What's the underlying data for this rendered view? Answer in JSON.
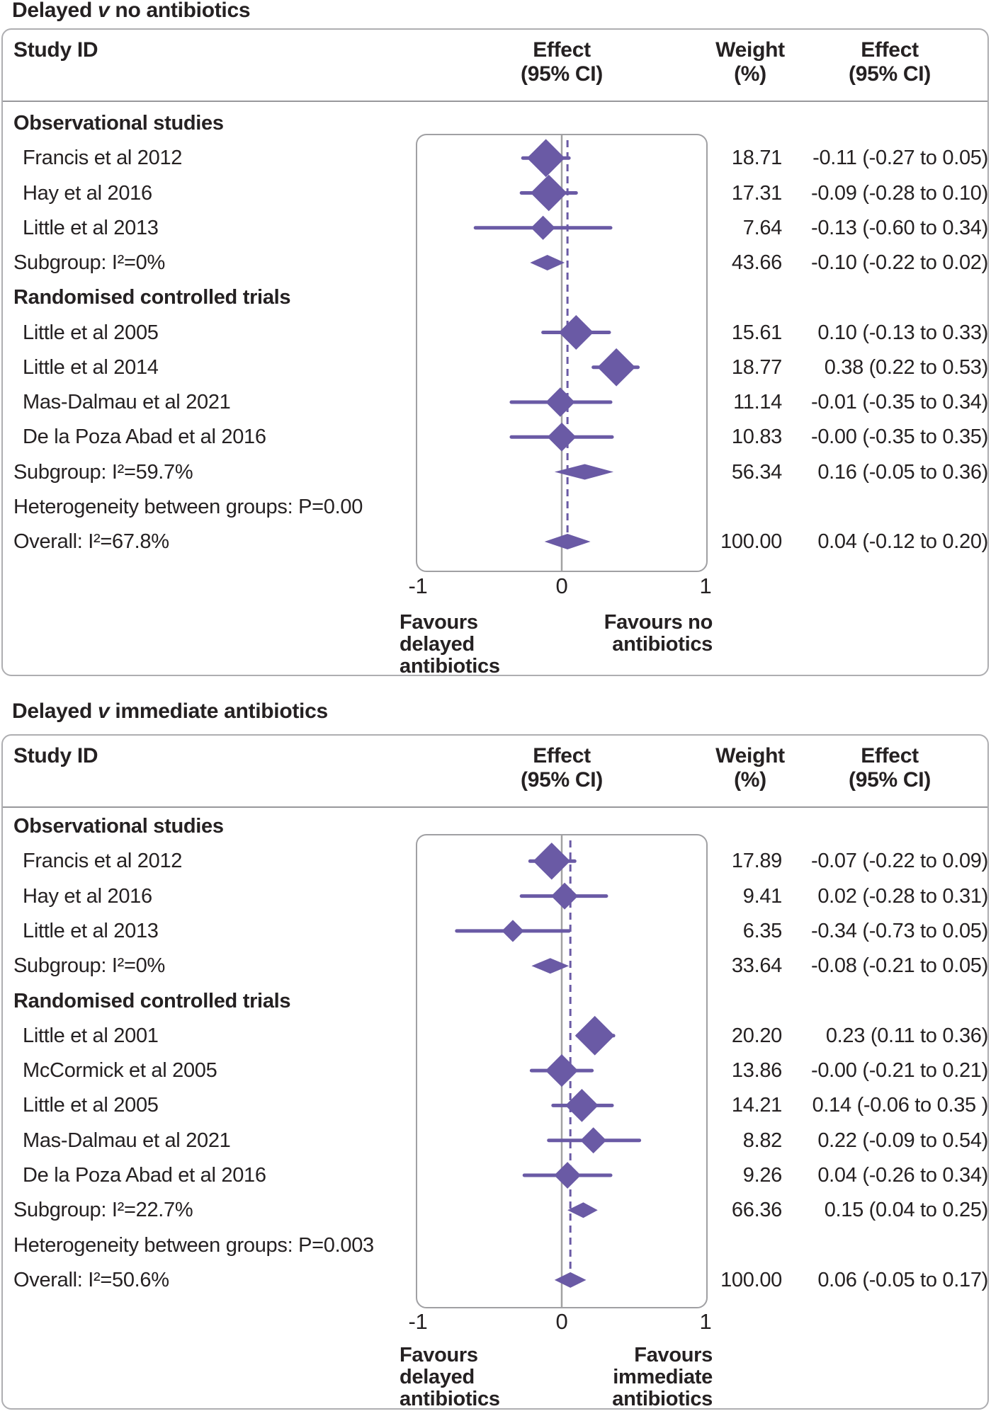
{
  "colors": {
    "accent": "#6a5aa5",
    "grid": "#a2a2a2",
    "box_border": "#a0a0a3",
    "panel_border": "#aeaeb1",
    "divider": "#98989b",
    "text": "#252122"
  },
  "chart_data": [
    {
      "type": "forest",
      "title_pre": "Delayed ",
      "title_v": "v",
      "title_post": " no antibiotics",
      "columns": {
        "study": "Study ID",
        "effect1": "Effect",
        "effect2": "(95% CI)",
        "weight1": "Weight",
        "weight2": "(%)"
      },
      "axis": {
        "xlim": [
          -1,
          1
        ],
        "ticks": [
          {
            "label": "-1",
            "value": -1
          },
          {
            "label": "0",
            "value": 0
          },
          {
            "label": "1",
            "value": 1
          }
        ]
      },
      "overall_x": 0.04,
      "footer_left": [
        "Favours",
        "delayed",
        "antibiotics"
      ],
      "footer_right": [
        "Favours no",
        "antibiotics"
      ],
      "rows": [
        {
          "kind": "group",
          "label": "Observational studies"
        },
        {
          "kind": "study",
          "label": "Francis et al 2012",
          "est": -0.11,
          "lo": -0.27,
          "hi": 0.05,
          "weight": "18.71",
          "effect_text": "-0.11 (-0.27 to 0.05)"
        },
        {
          "kind": "study",
          "label": "Hay et al 2016",
          "est": -0.09,
          "lo": -0.28,
          "hi": 0.1,
          "weight": "17.31",
          "effect_text": "-0.09 (-0.28 to 0.10)"
        },
        {
          "kind": "study",
          "label": "Little et al 2013",
          "est": -0.13,
          "lo": -0.6,
          "hi": 0.34,
          "weight": "7.64",
          "effect_text": "-0.13 (-0.60 to 0.34)"
        },
        {
          "kind": "summary",
          "label": "Subgroup: I²=0%",
          "est": -0.1,
          "lo": -0.22,
          "hi": 0.02,
          "weight": "43.66",
          "effect_text": "-0.10 (-0.22 to 0.02)"
        },
        {
          "kind": "group",
          "label": "Randomised controlled trials"
        },
        {
          "kind": "study",
          "label": "Little et al 2005",
          "est": 0.1,
          "lo": -0.13,
          "hi": 0.33,
          "weight": "15.61",
          "effect_text": "0.10 (-0.13 to 0.33)"
        },
        {
          "kind": "study",
          "label": "Little et al 2014",
          "est": 0.38,
          "lo": 0.22,
          "hi": 0.53,
          "weight": "18.77",
          "effect_text": "0.38 (0.22 to 0.53)"
        },
        {
          "kind": "study",
          "label": "Mas-Dalmau et al 2021",
          "est": -0.01,
          "lo": -0.35,
          "hi": 0.34,
          "weight": "11.14",
          "effect_text": "-0.01 (-0.35 to 0.34)"
        },
        {
          "kind": "study",
          "label": "De la Poza Abad et al 2016",
          "est": -0.0,
          "lo": -0.35,
          "hi": 0.35,
          "weight": "10.83",
          "effect_text": "-0.00 (-0.35 to 0.35)"
        },
        {
          "kind": "summary",
          "label": "Subgroup: I²=59.7%",
          "est": 0.16,
          "lo": -0.05,
          "hi": 0.36,
          "weight": "56.34",
          "effect_text": "0.16 (-0.05 to 0.36)"
        },
        {
          "kind": "note",
          "label": "Heterogeneity between groups: P=0.00"
        },
        {
          "kind": "summary",
          "label": "Overall: I²=67.8%",
          "est": 0.04,
          "lo": -0.12,
          "hi": 0.2,
          "weight": "100.00",
          "effect_text": "0.04 (-0.12 to 0.20)"
        }
      ]
    },
    {
      "type": "forest",
      "title_pre": "Delayed ",
      "title_v": "v",
      "title_post": " immediate antibiotics",
      "columns": {
        "study": "Study ID",
        "effect1": "Effect",
        "effect2": "(95% CI)",
        "weight1": "Weight",
        "weight2": "(%)"
      },
      "axis": {
        "xlim": [
          -1,
          1
        ],
        "ticks": [
          {
            "label": "-1",
            "value": -1
          },
          {
            "label": "0",
            "value": 0
          },
          {
            "label": "1",
            "value": 1
          }
        ]
      },
      "overall_x": 0.06,
      "footer_left": [
        "Favours",
        "delayed",
        "antibiotics"
      ],
      "footer_right": [
        "Favours",
        "immediate",
        "antibiotics"
      ],
      "rows": [
        {
          "kind": "group",
          "label": "Observational studies"
        },
        {
          "kind": "study",
          "label": "Francis et al 2012",
          "est": -0.07,
          "lo": -0.22,
          "hi": 0.09,
          "weight": "17.89",
          "effect_text": "-0.07 (-0.22 to 0.09)"
        },
        {
          "kind": "study",
          "label": "Hay et al 2016",
          "est": 0.02,
          "lo": -0.28,
          "hi": 0.31,
          "weight": "9.41",
          "effect_text": "0.02 (-0.28 to 0.31)"
        },
        {
          "kind": "study",
          "label": "Little et al 2013",
          "est": -0.34,
          "lo": -0.73,
          "hi": 0.05,
          "weight": "6.35",
          "effect_text": "-0.34 (-0.73 to 0.05)"
        },
        {
          "kind": "summary",
          "label": "Subgroup: I²=0%",
          "est": -0.08,
          "lo": -0.21,
          "hi": 0.05,
          "weight": "33.64",
          "effect_text": "-0.08 (-0.21 to 0.05)"
        },
        {
          "kind": "group",
          "label": "Randomised controlled trials"
        },
        {
          "kind": "study",
          "label": "Little et al 2001",
          "est": 0.23,
          "lo": 0.11,
          "hi": 0.36,
          "weight": "20.20",
          "effect_text": "0.23 (0.11 to 0.36)"
        },
        {
          "kind": "study",
          "label": "McCormick et al 2005",
          "est": -0.0,
          "lo": -0.21,
          "hi": 0.21,
          "weight": "13.86",
          "effect_text": "-0.00 (-0.21 to 0.21)"
        },
        {
          "kind": "study",
          "label": "Little et al 2005",
          "est": 0.14,
          "lo": -0.06,
          "hi": 0.35,
          "weight": "14.21",
          "effect_text": "0.14 (-0.06 to 0.35 )"
        },
        {
          "kind": "study",
          "label": "Mas-Dalmau et al 2021",
          "est": 0.22,
          "lo": -0.09,
          "hi": 0.54,
          "weight": "8.82",
          "effect_text": "0.22 (-0.09 to 0.54)"
        },
        {
          "kind": "study",
          "label": "De la Poza Abad et al 2016",
          "est": 0.04,
          "lo": -0.26,
          "hi": 0.34,
          "weight": "9.26",
          "effect_text": "0.04 (-0.26 to 0.34)"
        },
        {
          "kind": "summary",
          "label": "Subgroup: I²=22.7%",
          "est": 0.15,
          "lo": 0.04,
          "hi": 0.25,
          "weight": "66.36",
          "effect_text": "0.15 (0.04 to 0.25)"
        },
        {
          "kind": "note",
          "label": "Heterogeneity between groups: P=0.003"
        },
        {
          "kind": "summary",
          "label": "Overall: I²=50.6%",
          "est": 0.06,
          "lo": -0.05,
          "hi": 0.17,
          "weight": "100.00",
          "effect_text": "0.06 (-0.05 to 0.17)"
        }
      ]
    }
  ]
}
